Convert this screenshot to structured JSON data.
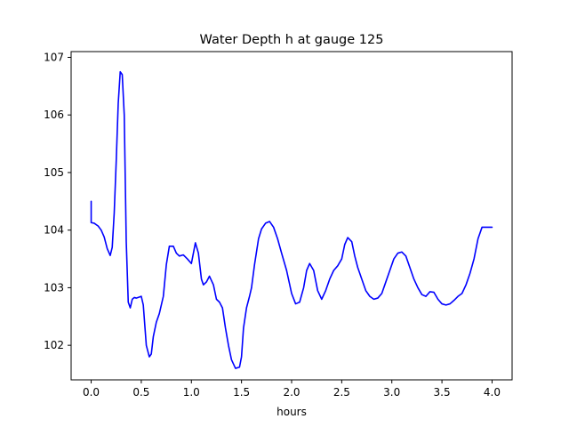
{
  "chart_data": {
    "type": "line",
    "title": "Water Depth h at gauge 125",
    "xlabel": "hours",
    "ylabel": "",
    "xlim": [
      -0.2,
      4.2
    ],
    "ylim": [
      101.4,
      107.1
    ],
    "xticks": [
      0.0,
      0.5,
      1.0,
      1.5,
      2.0,
      2.5,
      3.0,
      3.5,
      4.0
    ],
    "xtick_labels": [
      "0.0",
      "0.5",
      "1.0",
      "1.5",
      "2.0",
      "2.5",
      "3.0",
      "3.5",
      "4.0"
    ],
    "yticks": [
      102,
      103,
      104,
      105,
      106,
      107
    ],
    "ytick_labels": [
      "102",
      "103",
      "104",
      "105",
      "106",
      "107"
    ],
    "grid": false,
    "series": [
      {
        "color": "#0000ff",
        "x": [
          0.0,
          0.0,
          0.03,
          0.07,
          0.1,
          0.13,
          0.16,
          0.19,
          0.21,
          0.23,
          0.25,
          0.27,
          0.29,
          0.31,
          0.33,
          0.35,
          0.37,
          0.39,
          0.41,
          0.43,
          0.45,
          0.5,
          0.52,
          0.55,
          0.58,
          0.6,
          0.62,
          0.65,
          0.68,
          0.72,
          0.75,
          0.78,
          0.82,
          0.85,
          0.88,
          0.92,
          0.96,
          1.0,
          1.04,
          1.07,
          1.1,
          1.12,
          1.15,
          1.18,
          1.22,
          1.25,
          1.28,
          1.31,
          1.34,
          1.37,
          1.4,
          1.44,
          1.48,
          1.5,
          1.52,
          1.55,
          1.58,
          1.6,
          1.63,
          1.67,
          1.7,
          1.74,
          1.78,
          1.82,
          1.86,
          1.9,
          1.95,
          2.0,
          2.04,
          2.08,
          2.12,
          2.15,
          2.18,
          2.22,
          2.26,
          2.3,
          2.34,
          2.38,
          2.42,
          2.46,
          2.5,
          2.53,
          2.56,
          2.6,
          2.63,
          2.66,
          2.7,
          2.74,
          2.78,
          2.82,
          2.86,
          2.9,
          2.94,
          2.98,
          3.02,
          3.06,
          3.1,
          3.14,
          3.18,
          3.22,
          3.26,
          3.3,
          3.34,
          3.38,
          3.42,
          3.46,
          3.5,
          3.54,
          3.58,
          3.62,
          3.66,
          3.7,
          3.74,
          3.78,
          3.82,
          3.86,
          3.9,
          3.94,
          3.98,
          4.0
        ],
        "y": [
          104.5,
          104.13,
          104.12,
          104.07,
          104.0,
          103.88,
          103.68,
          103.56,
          103.7,
          104.3,
          105.2,
          106.2,
          106.75,
          106.7,
          106.0,
          103.8,
          102.75,
          102.65,
          102.8,
          102.83,
          102.82,
          102.85,
          102.7,
          102.0,
          101.8,
          101.85,
          102.15,
          102.4,
          102.55,
          102.85,
          103.4,
          103.72,
          103.72,
          103.6,
          103.55,
          103.57,
          103.5,
          103.42,
          103.78,
          103.6,
          103.15,
          103.05,
          103.1,
          103.2,
          103.05,
          102.8,
          102.75,
          102.65,
          102.3,
          102.0,
          101.75,
          101.6,
          101.62,
          101.8,
          102.3,
          102.65,
          102.85,
          103.0,
          103.4,
          103.85,
          104.02,
          104.12,
          104.15,
          104.05,
          103.85,
          103.6,
          103.3,
          102.9,
          102.72,
          102.75,
          103.0,
          103.3,
          103.42,
          103.3,
          102.95,
          102.8,
          102.95,
          103.15,
          103.3,
          103.38,
          103.5,
          103.75,
          103.87,
          103.8,
          103.55,
          103.35,
          103.15,
          102.95,
          102.85,
          102.8,
          102.82,
          102.9,
          103.1,
          103.3,
          103.5,
          103.6,
          103.62,
          103.55,
          103.35,
          103.15,
          103.0,
          102.88,
          102.85,
          102.93,
          102.92,
          102.8,
          102.72,
          102.7,
          102.72,
          102.78,
          102.85,
          102.9,
          103.05,
          103.25,
          103.5,
          103.85,
          104.05,
          104.05,
          104.05,
          104.05
        ]
      }
    ]
  }
}
